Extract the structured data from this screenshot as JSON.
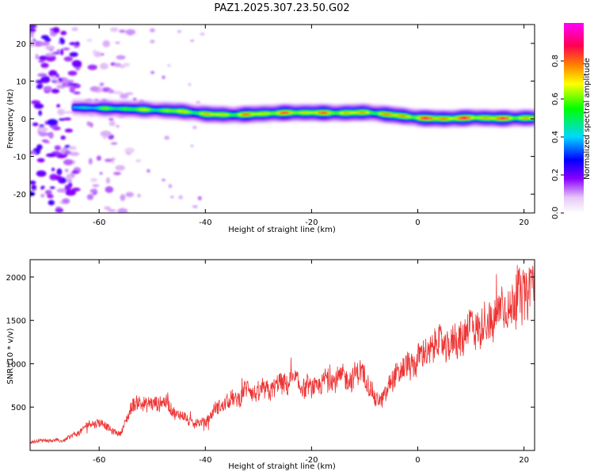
{
  "figure_title": "PAZ1.2025.307.23.50.G02",
  "chart_data": [
    {
      "type": "heatmap",
      "title": "PAZ1.2025.307.23.50.G02",
      "xlabel": "Height of straight line (km)",
      "ylabel": "Frequency (Hz)",
      "xlim": [
        -73,
        22
      ],
      "ylim": [
        -25,
        25
      ],
      "xticks": [
        -60,
        -40,
        -20,
        0,
        20
      ],
      "yticks": [
        -20,
        -10,
        0,
        10,
        20
      ],
      "colorbar": {
        "label": "Normalized spectral amplitude",
        "range": [
          0.0,
          1.0
        ],
        "ticks": [
          0.0,
          0.2,
          0.4,
          0.6,
          0.8
        ],
        "colors": [
          "#ffffff",
          "#e7c9f7",
          "#8a00ff",
          "#0000ff",
          "#00d7ff",
          "#00ff00",
          "#ffff00",
          "#ff7f00",
          "#ff0050",
          "#ff00ff"
        ]
      },
      "ridge_frequency": {
        "x": [
          -65,
          -60,
          -55,
          -50,
          -45,
          -40,
          -35,
          -30,
          -25,
          -20,
          -15,
          -10,
          -5,
          0,
          5,
          10,
          15,
          20,
          22
        ],
        "freq": [
          3.0,
          2.8,
          2.6,
          2.3,
          2.0,
          1.2,
          1.0,
          1.3,
          1.6,
          1.6,
          1.5,
          1.7,
          1.0,
          0.2,
          0.0,
          0.3,
          0.1,
          0.2,
          0.2
        ],
        "amplitude": [
          0.5,
          0.6,
          0.7,
          0.7,
          0.75,
          0.8,
          0.8,
          0.85,
          0.85,
          0.85,
          0.85,
          0.8,
          0.85,
          0.9,
          0.95,
          0.9,
          0.9,
          0.85,
          0.8
        ]
      }
    },
    {
      "type": "line",
      "xlabel": "Height of straight line (km)",
      "ylabel": "SNR (10 * v/v)",
      "xlim": [
        -73,
        22
      ],
      "ylim": [
        0,
        2200
      ],
      "xticks": [
        -60,
        -40,
        -20,
        0,
        20
      ],
      "yticks": [
        500,
        1000,
        1500,
        2000
      ],
      "color": "#ee3333",
      "series": [
        {
          "name": "SNR",
          "x": [
            -73,
            -70,
            -67,
            -64,
            -62,
            -60,
            -58,
            -56,
            -54,
            -52,
            -50,
            -48,
            -46,
            -44,
            -42,
            -40,
            -38,
            -36,
            -34,
            -32,
            -30,
            -28,
            -26,
            -24,
            -22,
            -20,
            -18,
            -16,
            -14,
            -12,
            -10,
            -8,
            -6,
            -4,
            -2,
            0,
            2,
            4,
            6,
            8,
            10,
            12,
            14,
            16,
            18,
            20,
            22
          ],
          "values": [
            100,
            120,
            110,
            200,
            300,
            330,
            250,
            180,
            500,
            560,
            520,
            580,
            450,
            380,
            300,
            330,
            480,
            560,
            600,
            720,
            650,
            700,
            760,
            800,
            760,
            700,
            780,
            840,
            820,
            860,
            900,
            560,
            650,
            900,
            950,
            1050,
            1150,
            1250,
            1200,
            1300,
            1450,
            1420,
            1500,
            1650,
            1700,
            1800,
            1950
          ]
        }
      ]
    }
  ]
}
